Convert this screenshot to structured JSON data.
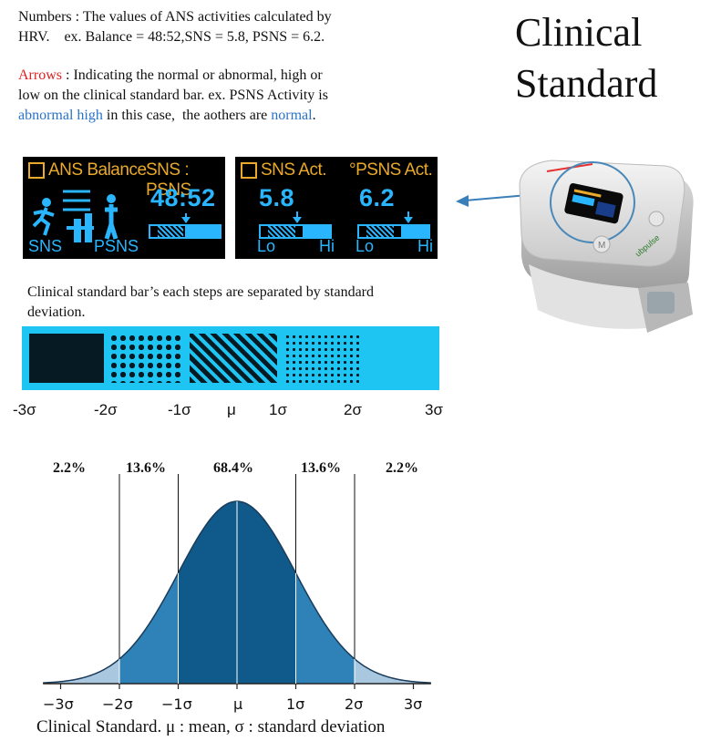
{
  "description": {
    "line1": "Numbers : The values of ANS activities calculated by",
    "line2": "HRV.    ex. Balance = 48:52,SNS = 5.8, PSNS = 6.2.",
    "arrows_word": "Arrows",
    "arrows_rest": " : Indicating the normal or abnormal, high or",
    "line4": "low on the clinical standard bar. ex. PSNS Activity is",
    "line5_blue1": "abnormal high",
    "line5_mid": " in this case,  the aothers are ",
    "line5_blue2": "normal",
    "line5_end": "."
  },
  "title": {
    "line1": "Clinical",
    "line2": "Standard"
  },
  "screens": {
    "balance": {
      "title_left": "ANS Balance",
      "title_right": "SNS : PSNS",
      "value": "48:52",
      "label_sns": "SNS",
      "label_psns": "PSNS"
    },
    "activity": {
      "title_left": "SNS Act.",
      "title_right": "°PSNS Act.",
      "value_sns": "5.8",
      "value_psns": "6.2",
      "lo": "Lo",
      "hi": "Hi"
    }
  },
  "bar_caption": {
    "line1": "Clinical standard bar’s each steps are separated by standard",
    "line2": "deviation."
  },
  "sigma_labels": [
    "-3σ",
    "-2σ",
    "-1σ",
    "μ",
    "1σ",
    "2σ",
    "3σ"
  ],
  "device": {
    "brand": "ubpulse",
    "button": "M"
  },
  "chart_data": {
    "type": "area",
    "title": "",
    "percentages": [
      "2.2%",
      "13.6%",
      "68.4%",
      "13.6%",
      "2.2%"
    ],
    "x_ticks": [
      "−3σ",
      "−2σ",
      "−1σ",
      "μ",
      "1σ",
      "2σ",
      "3σ"
    ],
    "x_range": [
      -3.3,
      3.3
    ],
    "regions": [
      {
        "from": -3.3,
        "to": -2,
        "color": "#a9c7de"
      },
      {
        "from": -2,
        "to": -1,
        "color": "#2f82b8"
      },
      {
        "from": -1,
        "to": 1,
        "color": "#0f5a8a"
      },
      {
        "from": 1,
        "to": 2,
        "color": "#2f82b8"
      },
      {
        "from": 2,
        "to": 3.3,
        "color": "#a9c7de"
      }
    ],
    "caption": "Clinical Standard. μ : mean, σ : standard deviation"
  }
}
